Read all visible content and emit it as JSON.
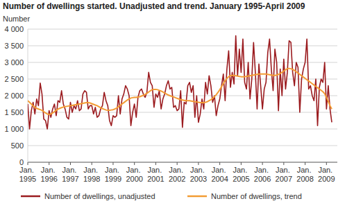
{
  "chart_data": {
    "type": "line",
    "title": "Number of dwellings started. Unadjusted and trend. January 1995-April 2009",
    "y_label": "Number",
    "categories": [
      "Jan. 1995",
      null,
      null,
      null,
      null,
      null,
      null,
      null,
      null,
      null,
      null,
      null,
      "Jan. 1996",
      null,
      null,
      null,
      null,
      null,
      null,
      null,
      null,
      null,
      null,
      null,
      "Jan. 1997",
      null,
      null,
      null,
      null,
      null,
      null,
      null,
      null,
      null,
      null,
      null,
      "Jan. 1998",
      null,
      null,
      null,
      null,
      null,
      null,
      null,
      null,
      null,
      null,
      null,
      "Jan. 1999",
      null,
      null,
      null,
      null,
      null,
      null,
      null,
      null,
      null,
      null,
      null,
      "Jan. 2000",
      null,
      null,
      null,
      null,
      null,
      null,
      null,
      null,
      null,
      null,
      null,
      "Jan. 2001",
      null,
      null,
      null,
      null,
      null,
      null,
      null,
      null,
      null,
      null,
      null,
      "Jan. 2002",
      null,
      null,
      null,
      null,
      null,
      null,
      null,
      null,
      null,
      null,
      null,
      "Jan. 2003",
      null,
      null,
      null,
      null,
      null,
      null,
      null,
      null,
      null,
      null,
      null,
      "Jan. 2004",
      null,
      null,
      null,
      null,
      null,
      null,
      null,
      null,
      null,
      null,
      null,
      "Jan. 2005",
      null,
      null,
      null,
      null,
      null,
      null,
      null,
      null,
      null,
      null,
      null,
      "Jan. 2006",
      null,
      null,
      null,
      null,
      null,
      null,
      null,
      null,
      null,
      null,
      null,
      "Jan. 2007",
      null,
      null,
      null,
      null,
      null,
      null,
      null,
      null,
      null,
      null,
      null,
      "Jan. 2008",
      null,
      null,
      null,
      null,
      null,
      null,
      null,
      null,
      null,
      null,
      null,
      "Jan. 2009",
      null,
      null,
      null
    ],
    "series": [
      {
        "name": "Number of dwellings, unadjusted",
        "color": "#9b1b1f",
        "values": [
          1750,
          1000,
          1550,
          1800,
          1450,
          1900,
          1700,
          2380,
          2050,
          1300,
          1250,
          1000,
          1550,
          1350,
          1600,
          1750,
          1400,
          1850,
          1800,
          2150,
          1750,
          1600,
          1350,
          1300,
          1800,
          1500,
          1700,
          1600,
          1850,
          1550,
          1600,
          2050,
          2150,
          2100,
          1600,
          1700,
          1700,
          1450,
          1650,
          1350,
          1400,
          1600,
          1700,
          2100,
          1850,
          1700,
          1250,
          1100,
          1400,
          1350,
          1400,
          2000,
          1450,
          1900,
          2050,
          2300,
          2200,
          2000,
          1100,
          1500,
          1750,
          1350,
          1950,
          2150,
          2200,
          2050,
          1950,
          2100,
          2700,
          2400,
          2300,
          1650,
          2050,
          1950,
          2150,
          1600,
          1900,
          2050,
          2300,
          2450,
          2200,
          2250,
          1650,
          1700,
          1550,
          1600,
          2150,
          1050,
          1800,
          1750,
          2300,
          2400,
          2100,
          2300,
          1350,
          2000,
          1200,
          1450,
          1900,
          1600,
          2400,
          2050,
          2600,
          2300,
          1800,
          2000,
          1400,
          1700,
          1900,
          2300,
          2650,
          1850,
          2800,
          3350,
          2250,
          2700,
          2350,
          3800,
          2600,
          3400,
          2700,
          3700,
          2400,
          2200,
          3000,
          1900,
          2500,
          3600,
          2700,
          1600,
          2950,
          2300,
          1600,
          2200,
          2400,
          3300,
          3700,
          2800,
          2150,
          3400,
          3000,
          1550,
          2800,
          2000,
          3100,
          2200,
          2700,
          3650,
          3600,
          2700,
          2300,
          3000,
          2850,
          1500,
          2500,
          2800,
          3000,
          3700,
          2200,
          2300,
          2000,
          1850,
          2500,
          1100,
          2250,
          2500,
          2400,
          3000,
          1600,
          2300,
          1600,
          1200
        ]
      },
      {
        "name": "Number of dwellings, trend",
        "color": "#f39c34",
        "values": [
          1850,
          1800,
          1750,
          1700,
          1650,
          1620,
          1600,
          1580,
          1560,
          1520,
          1480,
          1450,
          1440,
          1450,
          1480,
          1520,
          1560,
          1600,
          1620,
          1640,
          1660,
          1670,
          1680,
          1690,
          1700,
          1710,
          1720,
          1730,
          1740,
          1750,
          1760,
          1770,
          1780,
          1790,
          1790,
          1780,
          1760,
          1740,
          1720,
          1700,
          1670,
          1640,
          1610,
          1590,
          1570,
          1560,
          1560,
          1570,
          1580,
          1600,
          1630,
          1670,
          1710,
          1750,
          1790,
          1830,
          1870,
          1900,
          1930,
          1940,
          1950,
          1950,
          1960,
          1970,
          1990,
          2010,
          2040,
          2070,
          2110,
          2150,
          2180,
          2190,
          2190,
          2180,
          2160,
          2140,
          2110,
          2080,
          2050,
          2020,
          2000,
          1980,
          1960,
          1940,
          1920,
          1900,
          1880,
          1870,
          1860,
          1850,
          1850,
          1850,
          1840,
          1830,
          1820,
          1810,
          1800,
          1790,
          1790,
          1790,
          1800,
          1820,
          1850,
          1880,
          1920,
          1970,
          2030,
          2100,
          2180,
          2270,
          2360,
          2450,
          2520,
          2570,
          2600,
          2610,
          2610,
          2600,
          2590,
          2580,
          2570,
          2570,
          2570,
          2580,
          2590,
          2600,
          2610,
          2620,
          2630,
          2640,
          2650,
          2650,
          2650,
          2650,
          2650,
          2640,
          2630,
          2620,
          2610,
          2610,
          2620,
          2640,
          2670,
          2700,
          2740,
          2780,
          2810,
          2820,
          2810,
          2790,
          2760,
          2720,
          2680,
          2640,
          2600,
          2560,
          2520,
          2480,
          2440,
          2400,
          2360,
          2320,
          2280,
          2240,
          2200,
          2160,
          2120,
          2060,
          1950,
          1830,
          1700,
          1600
        ]
      }
    ],
    "ylim": [
      0,
      4000
    ],
    "yticks": [
      0,
      500,
      {
        "value": 1000,
        "label": "1 000"
      },
      {
        "value": 1500,
        "label": "1 500"
      },
      {
        "value": 2000,
        "label": "2 000"
      },
      {
        "value": 2500,
        "label": "2 500"
      },
      {
        "value": 3000,
        "label": "3 000"
      },
      {
        "value": 3500,
        "label": "3 500"
      },
      {
        "value": 4000,
        "label": "4 000"
      }
    ],
    "grid": true,
    "legend": "bottom"
  }
}
